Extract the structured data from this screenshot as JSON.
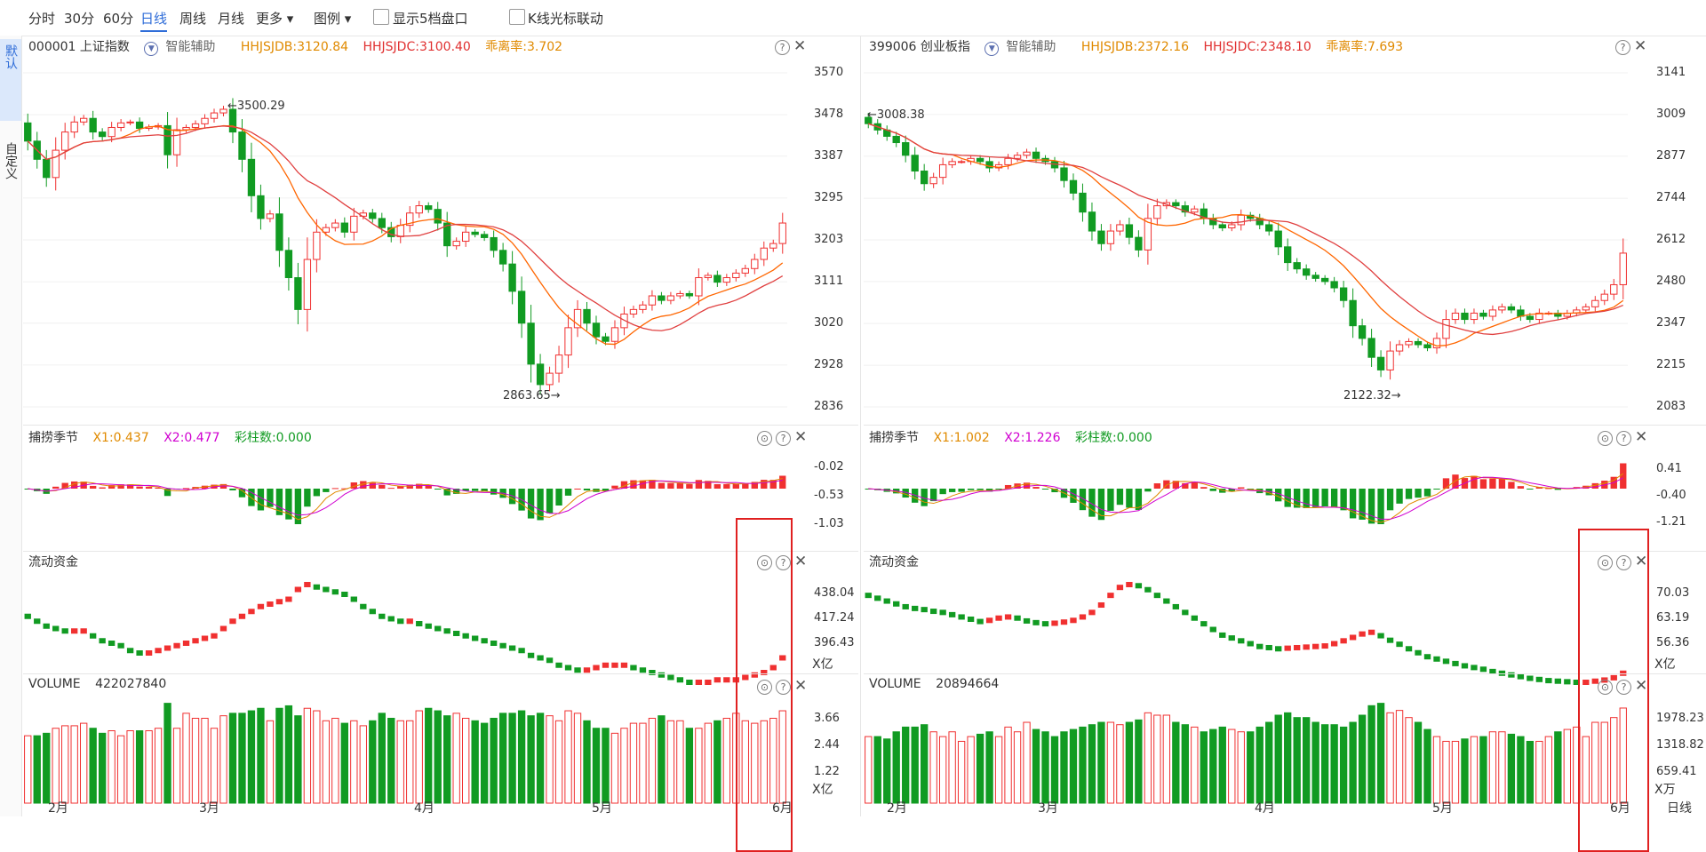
{
  "toolbar": {
    "items": [
      "分时",
      "30分",
      "60分",
      "日线",
      "周线",
      "月线",
      "更多 ▾",
      "图例 ▾"
    ],
    "active": "日线",
    "checkbox1": "显示5档盘口",
    "checkbox2": "K线光标联动"
  },
  "side": {
    "tab1": "默认",
    "tab2": "自定义"
  },
  "colors": {
    "up": "#f03030",
    "down": "#119b22",
    "ma1": "#ff6600",
    "ma2": "#e04040",
    "accent": "#2f6dd8",
    "box": "#e02020"
  },
  "left": {
    "code_name": "000001 上证指数",
    "assist": "智能辅助",
    "hhjsjdb": "HHJSJDB:3120.84",
    "hhjsjdc": "HHJSJDC:3100.40",
    "deviation": "乖离率:3.702",
    "price_axis": [
      "3570",
      "3478",
      "3387",
      "3295",
      "3203",
      "3111",
      "3020",
      "2928",
      "2836"
    ],
    "high_label": "3500.29",
    "low_label": "2863.65",
    "ind1": {
      "name": "捕捞季节",
      "x1": "X1:0.437",
      "x2": "X2:0.477",
      "bars": "彩柱数:0.000",
      "axis": [
        "-0.02",
        "-0.53",
        "-1.03"
      ]
    },
    "ind2": {
      "name": "流动资金",
      "axis": [
        "438.04",
        "417.24",
        "396.43"
      ],
      "unit": "X亿"
    },
    "ind3": {
      "name": "VOLUME",
      "value": "422027840",
      "axis": [
        "3.66",
        "2.44",
        "1.22"
      ],
      "unit": "X亿"
    },
    "months": [
      "2月",
      "3月",
      "4月",
      "5月",
      "6月"
    ],
    "closes": [
      3420,
      3380,
      3340,
      3400,
      3440,
      3462,
      3470,
      3440,
      3430,
      3450,
      3460,
      3462,
      3448,
      3451,
      3454,
      3390,
      3445,
      3450,
      3458,
      3470,
      3482,
      3490,
      3440,
      3380,
      3300,
      3250,
      3260,
      3180,
      3120,
      3050,
      3160,
      3220,
      3230,
      3240,
      3220,
      3255,
      3262,
      3250,
      3230,
      3210,
      3235,
      3262,
      3278,
      3270,
      3240,
      3190,
      3200,
      3220,
      3215,
      3208,
      3180,
      3150,
      3090,
      3020,
      2930,
      2885,
      2910,
      2950,
      3010,
      3050,
      3020,
      2990,
      2980,
      3010,
      3040,
      3050,
      3060,
      3080,
      3070,
      3080,
      3085,
      3080,
      3120,
      3125,
      3110,
      3120,
      3130,
      3140,
      3160,
      3185,
      3195,
      3240
    ],
    "volumes": [
      2.7,
      2.7,
      2.8,
      3.0,
      3.1,
      3.1,
      3.2,
      3.0,
      2.8,
      2.9,
      2.7,
      2.9,
      2.9,
      2.9,
      3.0,
      4.0,
      3.0,
      3.6,
      3.4,
      3.4,
      3.0,
      3.5,
      3.6,
      3.6,
      3.7,
      3.8,
      3.3,
      3.8,
      3.9,
      3.5,
      3.8,
      3.7,
      3.3,
      3.4,
      3.2,
      3.3,
      3.1,
      3.3,
      3.6,
      3.4,
      3.3,
      3.3,
      3.7,
      3.8,
      3.7,
      3.5,
      3.6,
      3.4,
      3.3,
      3.2,
      3.4,
      3.6,
      3.6,
      3.7,
      3.5,
      3.6,
      3.5,
      3.3,
      3.7,
      3.6,
      3.3,
      3.0,
      3.0,
      2.8,
      3.0,
      3.2,
      3.2,
      3.4,
      3.5,
      3.3,
      3.3,
      3.0,
      3.0,
      3.2,
      3.3,
      3.4,
      3.6,
      3.3,
      3.2,
      3.3,
      3.4,
      3.7
    ],
    "flows": [
      430,
      428,
      426,
      425,
      424,
      424,
      424,
      422,
      420,
      419,
      418,
      416,
      415,
      415,
      416,
      417,
      418,
      419,
      420,
      421,
      422,
      425,
      428,
      430,
      432,
      434,
      435,
      436,
      437,
      441,
      443,
      442,
      441,
      440,
      439,
      437,
      434,
      432,
      430,
      429,
      428,
      428,
      427,
      426,
      425,
      424,
      423,
      422,
      421,
      420,
      419,
      418,
      417,
      416,
      414,
      413,
      412,
      410,
      409,
      408,
      408,
      409,
      410,
      410,
      410,
      409,
      408,
      407,
      406,
      405,
      404,
      403,
      403,
      403,
      404,
      404,
      404,
      405,
      406,
      407,
      409,
      413
    ]
  },
  "right": {
    "code_name": "399006 创业板指",
    "assist": "智能辅助",
    "hhjsjdb": "HHJSJDB:2372.16",
    "hhjsjdc": "HHJSJDC:2348.10",
    "deviation": "乖离率:7.693",
    "price_axis": [
      "3141",
      "3009",
      "2877",
      "2744",
      "2612",
      "2480",
      "2347",
      "2215",
      "2083"
    ],
    "high_label": "3008.38",
    "low_label": "2122.32",
    "ind1": {
      "name": "捕捞季节",
      "x1": "X1:1.002",
      "x2": "X2:1.226",
      "bars": "彩柱数:0.000",
      "axis": [
        "0.41",
        "-0.40",
        "-1.21"
      ]
    },
    "ind2": {
      "name": "流动资金",
      "axis": [
        "70.03",
        "63.19",
        "56.36"
      ],
      "unit": "X亿"
    },
    "ind3": {
      "name": "VOLUME",
      "value": "20894664",
      "axis": [
        "1978.23",
        "1318.82",
        "659.41"
      ],
      "unit": "X万"
    },
    "months": [
      "2月",
      "3月",
      "4月",
      "5月",
      "6月"
    ],
    "footer": "日线",
    "closes": [
      2980,
      2960,
      2940,
      2920,
      2880,
      2830,
      2790,
      2810,
      2850,
      2860,
      2860,
      2870,
      2860,
      2840,
      2850,
      2870,
      2880,
      2890,
      2870,
      2860,
      2840,
      2800,
      2760,
      2700,
      2640,
      2600,
      2640,
      2660,
      2620,
      2580,
      2680,
      2720,
      2730,
      2720,
      2700,
      2710,
      2680,
      2660,
      2650,
      2660,
      2690,
      2680,
      2660,
      2640,
      2590,
      2540,
      2520,
      2500,
      2490,
      2480,
      2460,
      2420,
      2340,
      2300,
      2240,
      2200,
      2260,
      2280,
      2290,
      2280,
      2270,
      2300,
      2360,
      2380,
      2360,
      2380,
      2370,
      2390,
      2400,
      2390,
      2370,
      2360,
      2380,
      2380,
      2370,
      2380,
      2390,
      2400,
      2420,
      2440,
      2470,
      2570
    ],
    "volumes": [
      1400,
      1400,
      1350,
      1500,
      1600,
      1600,
      1650,
      1500,
      1400,
      1500,
      1300,
      1400,
      1450,
      1500,
      1400,
      1600,
      1500,
      1700,
      1550,
      1500,
      1400,
      1500,
      1550,
      1600,
      1650,
      1700,
      1700,
      1650,
      1700,
      1750,
      1900,
      1850,
      1850,
      1700,
      1650,
      1600,
      1500,
      1550,
      1600,
      1550,
      1500,
      1500,
      1600,
      1700,
      1850,
      1900,
      1800,
      1800,
      1700,
      1650,
      1650,
      1600,
      1700,
      1850,
      2050,
      2100,
      1900,
      1950,
      1800,
      1700,
      1550,
      1400,
      1300,
      1300,
      1350,
      1400,
      1400,
      1500,
      1500,
      1450,
      1400,
      1300,
      1300,
      1400,
      1500,
      1550,
      1600,
      1400,
      1700,
      1700,
      1800,
      2000
    ],
    "flows": [
      71,
      70.5,
      70,
      69.5,
      69,
      68.7,
      68.5,
      68.2,
      68,
      67.6,
      67.2,
      66.8,
      66.4,
      66.6,
      67,
      67.2,
      67,
      66.5,
      66.2,
      66,
      66.1,
      66.3,
      66.6,
      67.2,
      68,
      69.3,
      71,
      72.4,
      72.9,
      72.7,
      72,
      71,
      70,
      69,
      68,
      67,
      66,
      65,
      64,
      63.5,
      63,
      62.5,
      62,
      61.8,
      61.6,
      61.7,
      61.8,
      61.9,
      62,
      62.1,
      62.5,
      63,
      63.6,
      64.2,
      64.5,
      63.9,
      63.1,
      62.4,
      61.6,
      60.9,
      60.2,
      59.8,
      59.4,
      59.0,
      58.6,
      58.3,
      58.0,
      57.6,
      57.3,
      57.0,
      56.7,
      56.4,
      56.2,
      56.0,
      55.9,
      55.8,
      55.7,
      55.7,
      55.9,
      56.1,
      56.5,
      57.3
    ]
  }
}
